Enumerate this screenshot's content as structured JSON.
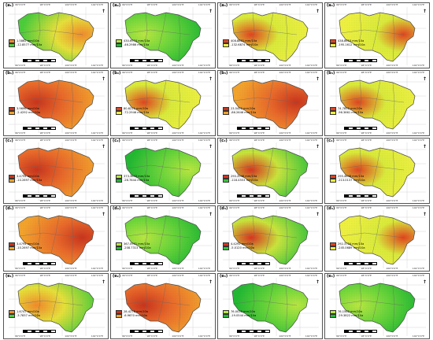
{
  "panels": [
    {
      "label": "(a₁)",
      "leg_hi": "1.5862 mm/10a",
      "leg_lo": "-12.8577 mm/10a",
      "scheme": "green_orange"
    },
    {
      "label": "(a₂)",
      "leg_hi": "430.6974 mm/10a",
      "leg_lo": "-46.2986 mm/10a",
      "scheme": "green"
    },
    {
      "label": "(a₃)",
      "leg_hi": "408.8801 mm/10a",
      "leg_lo": "-132.6874 mm/10a",
      "scheme": "yellow_hot"
    },
    {
      "label": "(a₄)",
      "leg_hi": "438.8610 mm/10a",
      "leg_lo": "-195.1612 mm/10a",
      "scheme": "yellow_hot"
    },
    {
      "label": "(b₁)",
      "leg_hi": "3.9696 mm/10a",
      "leg_lo": "-2.4292 mm/10a",
      "scheme": "orange"
    },
    {
      "label": "(b₂)",
      "leg_hi": "80.6211 mm/10a",
      "leg_lo": "-72.2946 mm/10a",
      "scheme": "yellow_hot"
    },
    {
      "label": "(b₃)",
      "leg_hi": "23.5452 mm/10a",
      "leg_lo": "-86.2646 mm/10a",
      "scheme": "orange"
    },
    {
      "label": "(b₄)",
      "leg_hi": "74.7852 mm/10a",
      "leg_lo": "-96.3661 mm/10a",
      "scheme": "yellow_hot"
    },
    {
      "label": "(c₁)",
      "leg_hi": "3.4794 mm/10a",
      "leg_lo": "-10.2697 mm/10a",
      "scheme": "orange"
    },
    {
      "label": "(c₂)",
      "leg_hi": "373.3643 mm/10a",
      "leg_lo": "-26.7644 mm/10a",
      "scheme": "green"
    },
    {
      "label": "(c₃)",
      "leg_hi": "290.2046 mm/10a",
      "leg_lo": "-116.4553 mm/10a",
      "scheme": "green_hot"
    },
    {
      "label": "(c₄)",
      "leg_hi": "295.4648 mm/10a",
      "leg_lo": "-213.0137 mm/10a",
      "scheme": "yellow_hot"
    },
    {
      "label": "(d₁)",
      "leg_hi": "3.4794 mm/10a",
      "leg_lo": "-10.2697 mm/10a",
      "scheme": "orange"
    },
    {
      "label": "(d₂)",
      "leg_hi": "367.0901 mm/10a",
      "leg_lo": "-208.7313 mm/10a",
      "scheme": "green"
    },
    {
      "label": "(d₃)",
      "leg_hi": "4.4292 mm/10a",
      "leg_lo": "-5.0120 mm/10a",
      "scheme": "green_hot"
    },
    {
      "label": "(d₄)",
      "leg_hi": "292.3724 mm/10a",
      "leg_lo": "-245.0689 mm/10a",
      "scheme": "yellow_hot"
    },
    {
      "label": "(e₁)",
      "leg_hi": "1.6747 mm/10a",
      "leg_lo": "-3.7837 mm/10a",
      "scheme": "green_orange"
    },
    {
      "label": "(e₂)",
      "leg_hi": "28.4276 mm/10a",
      "leg_lo": "-6.9670 mm/10a",
      "scheme": "orange"
    },
    {
      "label": "(e₃)",
      "leg_hi": "76.0030 mm/10a",
      "leg_lo": "-19.0544 mm/10a",
      "scheme": "green"
    },
    {
      "label": "(e₄)",
      "leg_hi": "76.1562 mm/10a",
      "leg_lo": "-29.3822 mm/10a",
      "scheme": "green"
    }
  ],
  "lon_ticks": [
    "96°0'0\"E",
    "98°0'0\"E",
    "100°0'0\"E",
    "102°0'0\"E"
  ],
  "north_symbol": "N",
  "colors": {
    "green": "#2ec234",
    "yellow": "#f3ea3a",
    "orange": "#f08a2a",
    "red": "#d8341f",
    "border": "#4a4a4a"
  }
}
